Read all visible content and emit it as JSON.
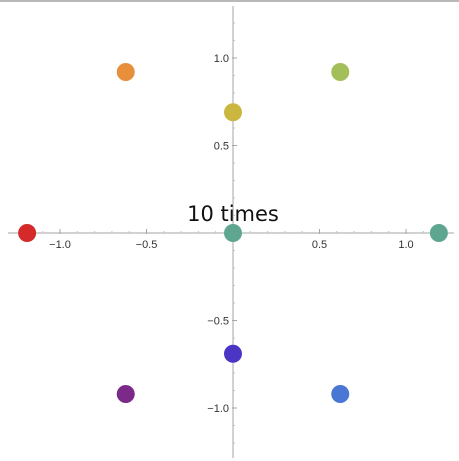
{
  "chart_data": {
    "type": "scatter",
    "title": "",
    "xlabel": "",
    "ylabel": "",
    "xlim": [
      -1.22,
      1.22
    ],
    "ylim": [
      -1.29,
      1.29
    ],
    "grid": false,
    "annotation": "10 times",
    "x_ticks": [
      {
        "value": -1.0,
        "label": "−1.0"
      },
      {
        "value": -0.5,
        "label": "−0.5"
      },
      {
        "value": 0.5,
        "label": "0.5"
      },
      {
        "value": 1.0,
        "label": "1.0"
      }
    ],
    "y_ticks": [
      {
        "value": 1.0,
        "label": "1.0"
      },
      {
        "value": 0.5,
        "label": "0.5"
      },
      {
        "value": -0.5,
        "label": "−0.5"
      },
      {
        "value": -1.0,
        "label": "−1.0"
      }
    ],
    "points": [
      {
        "x": -1.19,
        "y": 0.0,
        "color": "#d42a2a"
      },
      {
        "x": -0.62,
        "y": 0.92,
        "color": "#e88f3c"
      },
      {
        "x": 0.62,
        "y": 0.92,
        "color": "#a3bf5a"
      },
      {
        "x": 0.0,
        "y": 0.69,
        "color": "#cbb640"
      },
      {
        "x": 0.0,
        "y": 0.0,
        "color": "#5fa690"
      },
      {
        "x": 1.19,
        "y": 0.0,
        "color": "#5fa690"
      },
      {
        "x": 0.0,
        "y": -0.69,
        "color": "#4b35c5"
      },
      {
        "x": -0.62,
        "y": -0.92,
        "color": "#7b2a8a"
      },
      {
        "x": 0.62,
        "y": -0.92,
        "color": "#4a76d4"
      }
    ]
  }
}
